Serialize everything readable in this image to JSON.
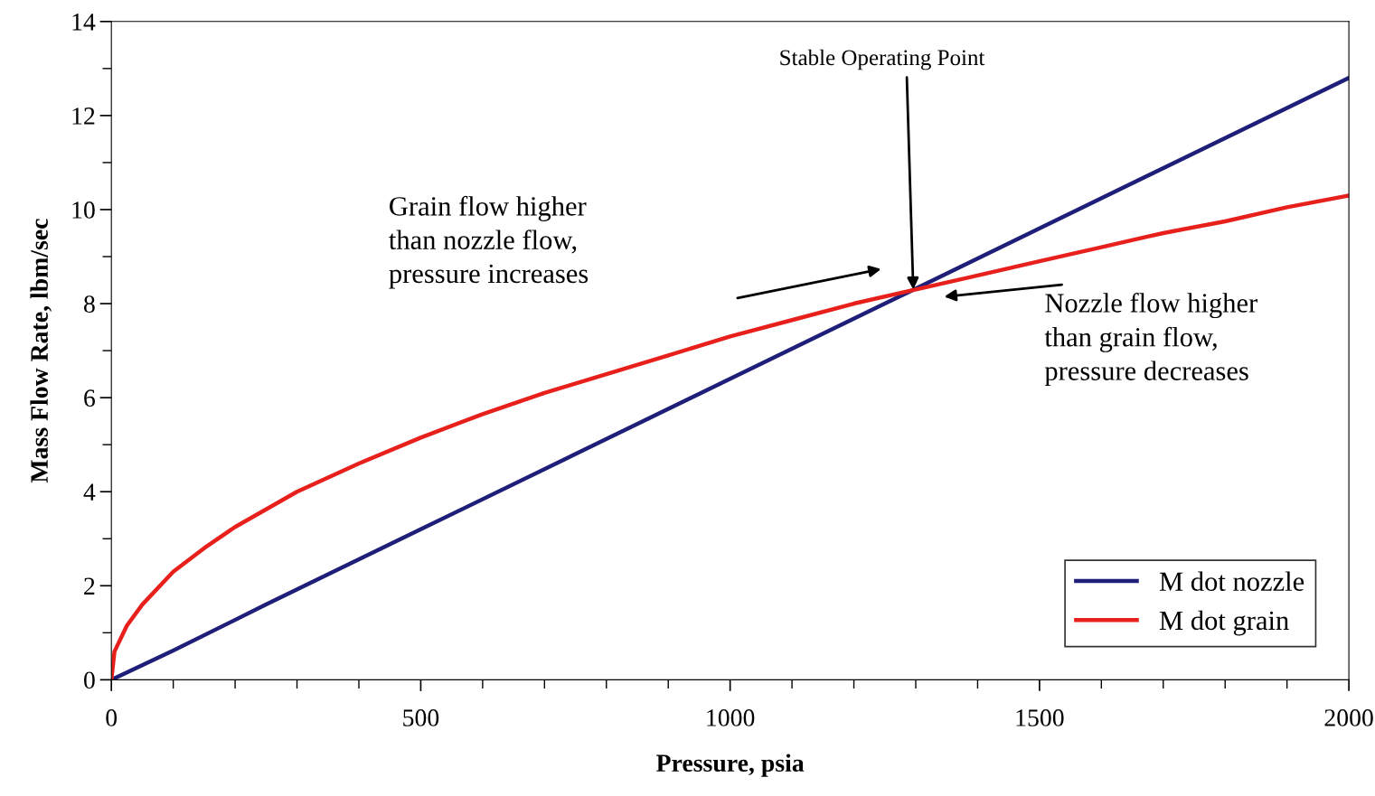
{
  "chart_data": {
    "type": "line",
    "xlabel": "Pressure, psia",
    "ylabel": "Mass Flow Rate, lbm/sec",
    "xlim": [
      0,
      2000
    ],
    "ylim": [
      0,
      14
    ],
    "xticks": [
      0,
      {
        "value": 100,
        "label": null
      },
      {
        "value": 200,
        "label": null
      },
      {
        "value": 300,
        "label": null
      },
      {
        "value": 400,
        "label": null
      },
      500,
      {
        "value": 600,
        "label": null
      },
      {
        "value": 700,
        "label": null
      },
      {
        "value": 800,
        "label": null
      },
      {
        "value": 900,
        "label": null
      },
      1000,
      {
        "value": 1100,
        "label": null
      },
      {
        "value": 1200,
        "label": null
      },
      {
        "value": 1300,
        "label": null
      },
      {
        "value": 1400,
        "label": null
      },
      1500,
      {
        "value": 1600,
        "label": null
      },
      {
        "value": 1700,
        "label": null
      },
      {
        "value": 1800,
        "label": null
      },
      {
        "value": 1900,
        "label": null
      },
      2000
    ],
    "yticks": [
      0,
      {
        "value": 1,
        "label": null
      },
      2,
      {
        "value": 3,
        "label": null
      },
      4,
      {
        "value": 5,
        "label": null
      },
      6,
      {
        "value": 7,
        "label": null
      },
      8,
      {
        "value": 9,
        "label": null
      },
      10,
      {
        "value": 11,
        "label": null
      },
      12,
      {
        "value": 13,
        "label": null
      },
      14
    ],
    "grid": false,
    "legend": "bottom right",
    "marker": "none",
    "line_style": "solid",
    "series": [
      {
        "name": "M dot nozzle",
        "color": "#1f1f7a",
        "x": [
          0,
          100,
          250,
          500,
          750,
          1000,
          1250,
          1500,
          1750,
          2000
        ],
        "values": [
          0,
          0.62,
          1.6,
          3.2,
          4.8,
          6.4,
          8.0,
          9.6,
          11.2,
          12.8
        ]
      },
      {
        "name": "M dot grain",
        "color": "#e8201c",
        "x": [
          0,
          5,
          25,
          50,
          100,
          150,
          200,
          300,
          400,
          500,
          600,
          700,
          800,
          900,
          1000,
          1100,
          1200,
          1300,
          1400,
          1500,
          1600,
          1700,
          1800,
          1900,
          2000
        ],
        "values": [
          0,
          0.6,
          1.15,
          1.6,
          2.3,
          2.8,
          3.25,
          4.0,
          4.6,
          5.15,
          5.65,
          6.1,
          6.5,
          6.9,
          7.3,
          7.65,
          8.0,
          8.3,
          8.6,
          8.9,
          9.2,
          9.5,
          9.75,
          10.05,
          10.3
        ]
      }
    ],
    "annotations": [
      {
        "text": "Stable Operating Point",
        "x": 1296,
        "y": 8.3
      },
      "Grain flow higher\nthan nozzle flow,\npressure increases",
      "Nozzle flow higher\nthan grain flow,\npressure decreases"
    ]
  }
}
